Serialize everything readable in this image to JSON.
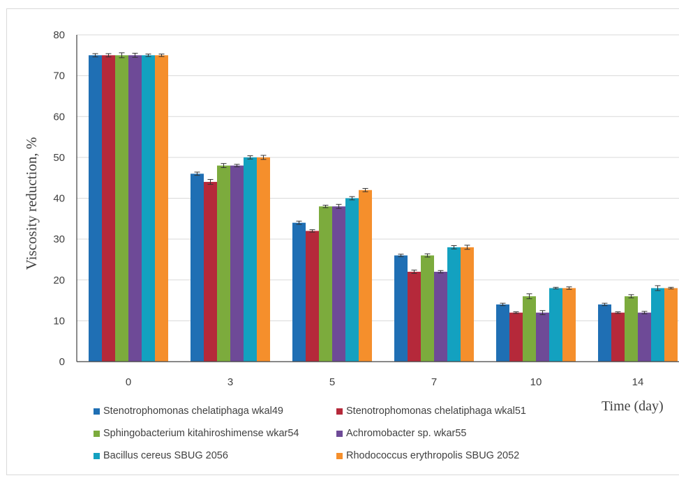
{
  "chart_data": {
    "type": "bar",
    "categories": [
      "0",
      "3",
      "5",
      "7",
      "10",
      "14"
    ],
    "series": [
      {
        "name": "Stenotrophomonas chelatiphaga wkal49",
        "color": "#1f6fb4",
        "values": [
          75,
          46,
          34,
          26,
          14,
          14
        ],
        "errors": [
          0.4,
          0.4,
          0.4,
          0.3,
          0.3,
          0.3
        ]
      },
      {
        "name": "Stenotrophomonas chelatiphaga wkal51",
        "color": "#b5293a",
        "values": [
          75,
          44,
          32,
          22,
          12,
          12
        ],
        "errors": [
          0.4,
          0.6,
          0.3,
          0.4,
          0.2,
          0.2
        ]
      },
      {
        "name": "Sphingobacterium kitahiroshimense wkar54",
        "color": "#7cab3d",
        "values": [
          75,
          48,
          38,
          26,
          16,
          16
        ],
        "errors": [
          0.6,
          0.5,
          0.3,
          0.4,
          0.6,
          0.4
        ]
      },
      {
        "name": "Achromobacter sp. wkar55",
        "color": "#6e4a97",
        "values": [
          75,
          48,
          38,
          22,
          12,
          12
        ],
        "errors": [
          0.5,
          0.3,
          0.5,
          0.3,
          0.5,
          0.3
        ]
      },
      {
        "name": "Bacillus cereus SBUG 2056",
        "color": "#13a1c0",
        "values": [
          75,
          50,
          40,
          28,
          18,
          18
        ],
        "errors": [
          0.3,
          0.4,
          0.4,
          0.4,
          0.2,
          0.6
        ]
      },
      {
        "name": "Rhodococcus erythropolis SBUG 2052",
        "color": "#f58f2c",
        "values": [
          75,
          50,
          42,
          28,
          18,
          18
        ],
        "errors": [
          0.3,
          0.5,
          0.4,
          0.5,
          0.3,
          0.2
        ]
      }
    ],
    "xlabel": "Time (day)",
    "ylabel": "Viscosity reduction, %",
    "ylim": [
      0,
      80
    ],
    "yticks": [
      0,
      10,
      20,
      30,
      40,
      50,
      60,
      70,
      80
    ],
    "grid": true,
    "legend_position": "bottom",
    "error_bars": true
  }
}
